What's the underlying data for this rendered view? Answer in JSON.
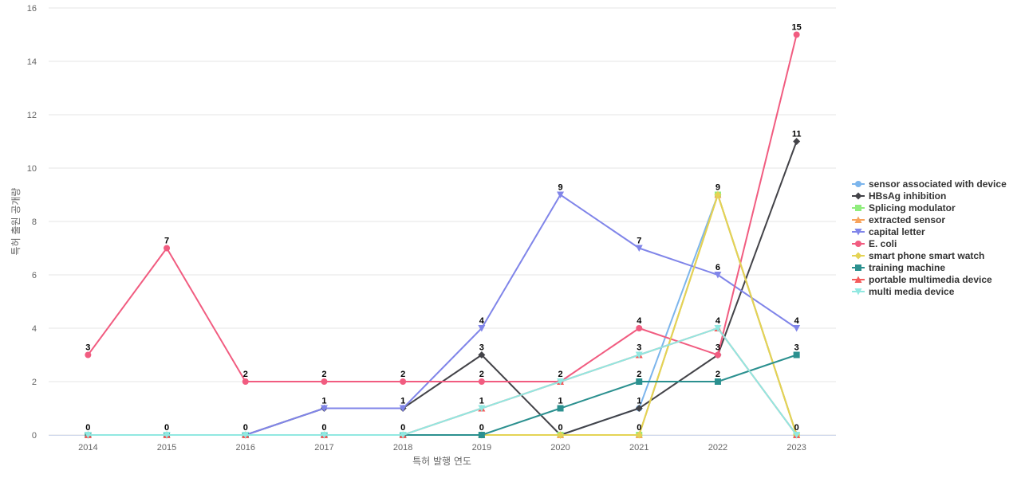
{
  "chart_data": {
    "type": "line",
    "title": "",
    "xlabel": "특허 발행 연도",
    "ylabel": "특허 출원 공개량",
    "x": [
      "2014",
      "2015",
      "2016",
      "2017",
      "2018",
      "2019",
      "2020",
      "2021",
      "2022",
      "2023"
    ],
    "ylim": [
      0,
      16
    ],
    "yticks": [
      "0",
      "2",
      "4",
      "6",
      "8",
      "10",
      "12",
      "14",
      "16"
    ],
    "grid": true,
    "legend_position": "right",
    "series": [
      {
        "name": "sensor associated with device",
        "color": "#7cb5ec",
        "marker": "circle",
        "values": [
          0,
          0,
          0,
          0,
          0,
          0,
          0,
          1,
          9,
          0
        ]
      },
      {
        "name": "HBsAg inhibition",
        "color": "#434348",
        "marker": "diamond",
        "values": [
          0,
          0,
          0,
          1,
          1,
          3,
          0,
          1,
          3,
          11
        ]
      },
      {
        "name": "Splicing modulator",
        "color": "#90ed7d",
        "marker": "square",
        "values": [
          0,
          0,
          0,
          0,
          0,
          0,
          0,
          0,
          9,
          0
        ]
      },
      {
        "name": "extracted sensor",
        "color": "#f7a35c",
        "marker": "triangle",
        "values": [
          0,
          0,
          0,
          0,
          0,
          0,
          0,
          0,
          9,
          0
        ]
      },
      {
        "name": "capital letter",
        "color": "#8085e9",
        "marker": "triangle-down",
        "values": [
          0,
          0,
          0,
          1,
          1,
          4,
          9,
          7,
          6,
          4
        ]
      },
      {
        "name": "E. coli",
        "color": "#f15c80",
        "marker": "circle",
        "values": [
          3,
          7,
          2,
          2,
          2,
          2,
          2,
          4,
          3,
          15
        ]
      },
      {
        "name": "smart phone smart watch",
        "color": "#e4d354",
        "marker": "diamond",
        "values": [
          0,
          0,
          0,
          0,
          0,
          0,
          0,
          0,
          9,
          0
        ]
      },
      {
        "name": "training machine",
        "color": "#2b908f",
        "marker": "square",
        "values": [
          0,
          0,
          0,
          0,
          0,
          0,
          1,
          2,
          2,
          3
        ]
      },
      {
        "name": "portable multimedia device",
        "color": "#f45b5b",
        "marker": "triangle",
        "values": [
          0,
          0,
          0,
          0,
          0,
          1,
          2,
          3,
          4,
          0
        ]
      },
      {
        "name": "multi media device",
        "color": "#91e8e1",
        "marker": "triangle-down",
        "values": [
          0,
          0,
          0,
          0,
          0,
          1,
          2,
          3,
          4,
          0
        ]
      }
    ],
    "data_labels": [
      {
        "x": "2014",
        "y": 3,
        "text": "3"
      },
      {
        "x": "2015",
        "y": 7,
        "text": "7"
      },
      {
        "x": "2016",
        "y": 2,
        "text": "2"
      },
      {
        "x": "2017",
        "y": 2,
        "text": "2"
      },
      {
        "x": "2018",
        "y": 2,
        "text": "2"
      },
      {
        "x": "2019",
        "y": 2,
        "text": "2"
      },
      {
        "x": "2020",
        "y": 2,
        "text": "2"
      },
      {
        "x": "2021",
        "y": 4,
        "text": "4"
      },
      {
        "x": "2022",
        "y": 3,
        "text": "3"
      },
      {
        "x": "2023",
        "y": 15,
        "text": "15"
      },
      {
        "x": "2014",
        "y": 0,
        "text": "0"
      },
      {
        "x": "2015",
        "y": 0,
        "text": "0"
      },
      {
        "x": "2016",
        "y": 0,
        "text": "0"
      },
      {
        "x": "2017",
        "y": 1,
        "text": "1"
      },
      {
        "x": "2018",
        "y": 1,
        "text": "1"
      },
      {
        "x": "2019",
        "y": 3,
        "text": "3"
      },
      {
        "x": "2020",
        "y": 0,
        "text": "0"
      },
      {
        "x": "2021",
        "y": 1,
        "text": "1"
      },
      {
        "x": "2023",
        "y": 11,
        "text": "11"
      },
      {
        "x": "2017",
        "y": 0,
        "text": "0"
      },
      {
        "x": "2018",
        "y": 0,
        "text": "0"
      },
      {
        "x": "2019",
        "y": 0,
        "text": "0"
      },
      {
        "x": "2021",
        "y": 0,
        "text": "0"
      },
      {
        "x": "2023",
        "y": 0,
        "text": "0"
      },
      {
        "x": "2019",
        "y": 4,
        "text": "4"
      },
      {
        "x": "2020",
        "y": 9,
        "text": "9"
      },
      {
        "x": "2021",
        "y": 7,
        "text": "7"
      },
      {
        "x": "2022",
        "y": 6,
        "text": "6"
      },
      {
        "x": "2023",
        "y": 4,
        "text": "4"
      },
      {
        "x": "2022",
        "y": 9,
        "text": "9"
      },
      {
        "x": "2020",
        "y": 1,
        "text": "1"
      },
      {
        "x": "2021",
        "y": 2,
        "text": "2"
      },
      {
        "x": "2022",
        "y": 2,
        "text": "2"
      },
      {
        "x": "2023",
        "y": 3,
        "text": "3"
      },
      {
        "x": "2019",
        "y": 1,
        "text": "1"
      },
      {
        "x": "2021",
        "y": 3,
        "text": "3"
      },
      {
        "x": "2022",
        "y": 4,
        "text": "4"
      }
    ]
  }
}
